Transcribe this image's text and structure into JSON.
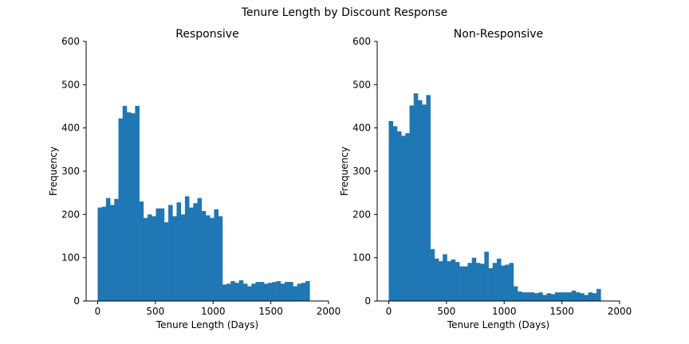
{
  "figure": {
    "title": "Tenure Length by Discount Response"
  },
  "colors": {
    "bar": "#1f77b4",
    "axis": "#000000",
    "background": "#ffffff"
  },
  "chart_data": [
    {
      "type": "bar",
      "title": "Responsive",
      "xlabel": "Tenure Length (Days)",
      "ylabel": "Frequency",
      "xlim": [
        -100,
        2000
      ],
      "ylim": [
        0,
        600
      ],
      "xticks": [
        0,
        500,
        1000,
        1500,
        2000
      ],
      "yticks": [
        0,
        100,
        200,
        300,
        400,
        500,
        600
      ],
      "grid": false,
      "bin_start": 0,
      "bin_width": 36,
      "values": [
        216,
        218,
        238,
        222,
        236,
        422,
        451,
        436,
        434,
        451,
        230,
        192,
        200,
        196,
        214,
        214,
        182,
        222,
        196,
        228,
        200,
        242,
        216,
        226,
        238,
        208,
        198,
        192,
        212,
        196,
        38,
        40,
        46,
        42,
        48,
        40,
        34,
        40,
        44,
        44,
        40,
        42,
        44,
        46,
        40,
        44,
        44,
        34,
        40,
        42,
        46
      ]
    },
    {
      "type": "bar",
      "title": "Non-Responsive",
      "xlabel": "Tenure Length (Days)",
      "ylabel": "Frequency",
      "xlim": [
        -100,
        2000
      ],
      "ylim": [
        0,
        600
      ],
      "xticks": [
        0,
        500,
        1000,
        1500,
        2000
      ],
      "yticks": [
        0,
        100,
        200,
        300,
        400,
        500,
        600
      ],
      "grid": false,
      "bin_start": 0,
      "bin_width": 36,
      "values": [
        416,
        404,
        392,
        382,
        388,
        452,
        480,
        464,
        454,
        476,
        120,
        98,
        92,
        108,
        92,
        96,
        90,
        80,
        80,
        88,
        100,
        88,
        86,
        114,
        76,
        88,
        98,
        82,
        84,
        88,
        34,
        22,
        20,
        20,
        20,
        18,
        20,
        14,
        18,
        16,
        20,
        20,
        20,
        20,
        24,
        20,
        18,
        14,
        20,
        18,
        28
      ]
    }
  ]
}
